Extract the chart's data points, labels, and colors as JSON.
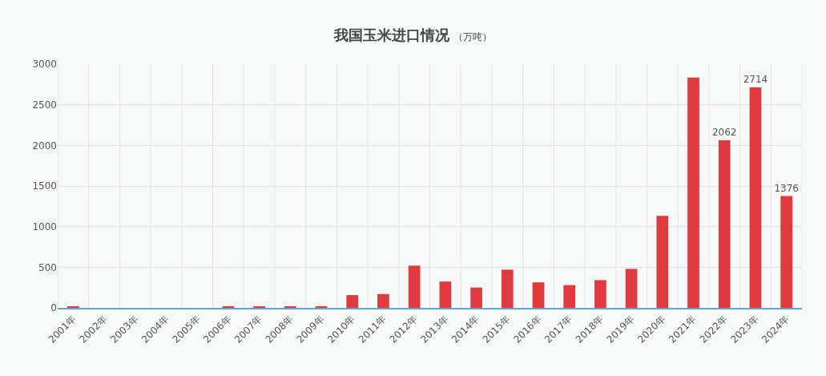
{
  "chart_data": {
    "type": "bar",
    "title": "我国玉米进口情况",
    "subtitle": "（万吨）",
    "categories": [
      "2001年",
      "2002年",
      "2003年",
      "2004年",
      "2005年",
      "2006年",
      "2007年",
      "2008年",
      "2009年",
      "2010年",
      "2011年",
      "2012年",
      "2013年",
      "2014年",
      "2015年",
      "2016年",
      "2017年",
      "2018年",
      "2019年",
      "2020年",
      "2021年",
      "2022年",
      "2023年",
      "2024年"
    ],
    "values": [
      20,
      0,
      0,
      0,
      0,
      20,
      20,
      20,
      20,
      157,
      170,
      520,
      324,
      250,
      470,
      314,
      280,
      341,
      480,
      1132,
      2835,
      2062,
      2714,
      1376
    ],
    "value_labels": [
      null,
      null,
      null,
      null,
      null,
      null,
      null,
      null,
      null,
      null,
      null,
      null,
      null,
      null,
      null,
      null,
      null,
      null,
      null,
      null,
      null,
      "2062",
      "2714",
      "1376"
    ],
    "color": "#e03a3e",
    "ylim": [
      0,
      3000
    ],
    "yticks": [
      0,
      500,
      1000,
      1500,
      2000,
      2500,
      3000
    ],
    "grid": true,
    "legend": false
  }
}
